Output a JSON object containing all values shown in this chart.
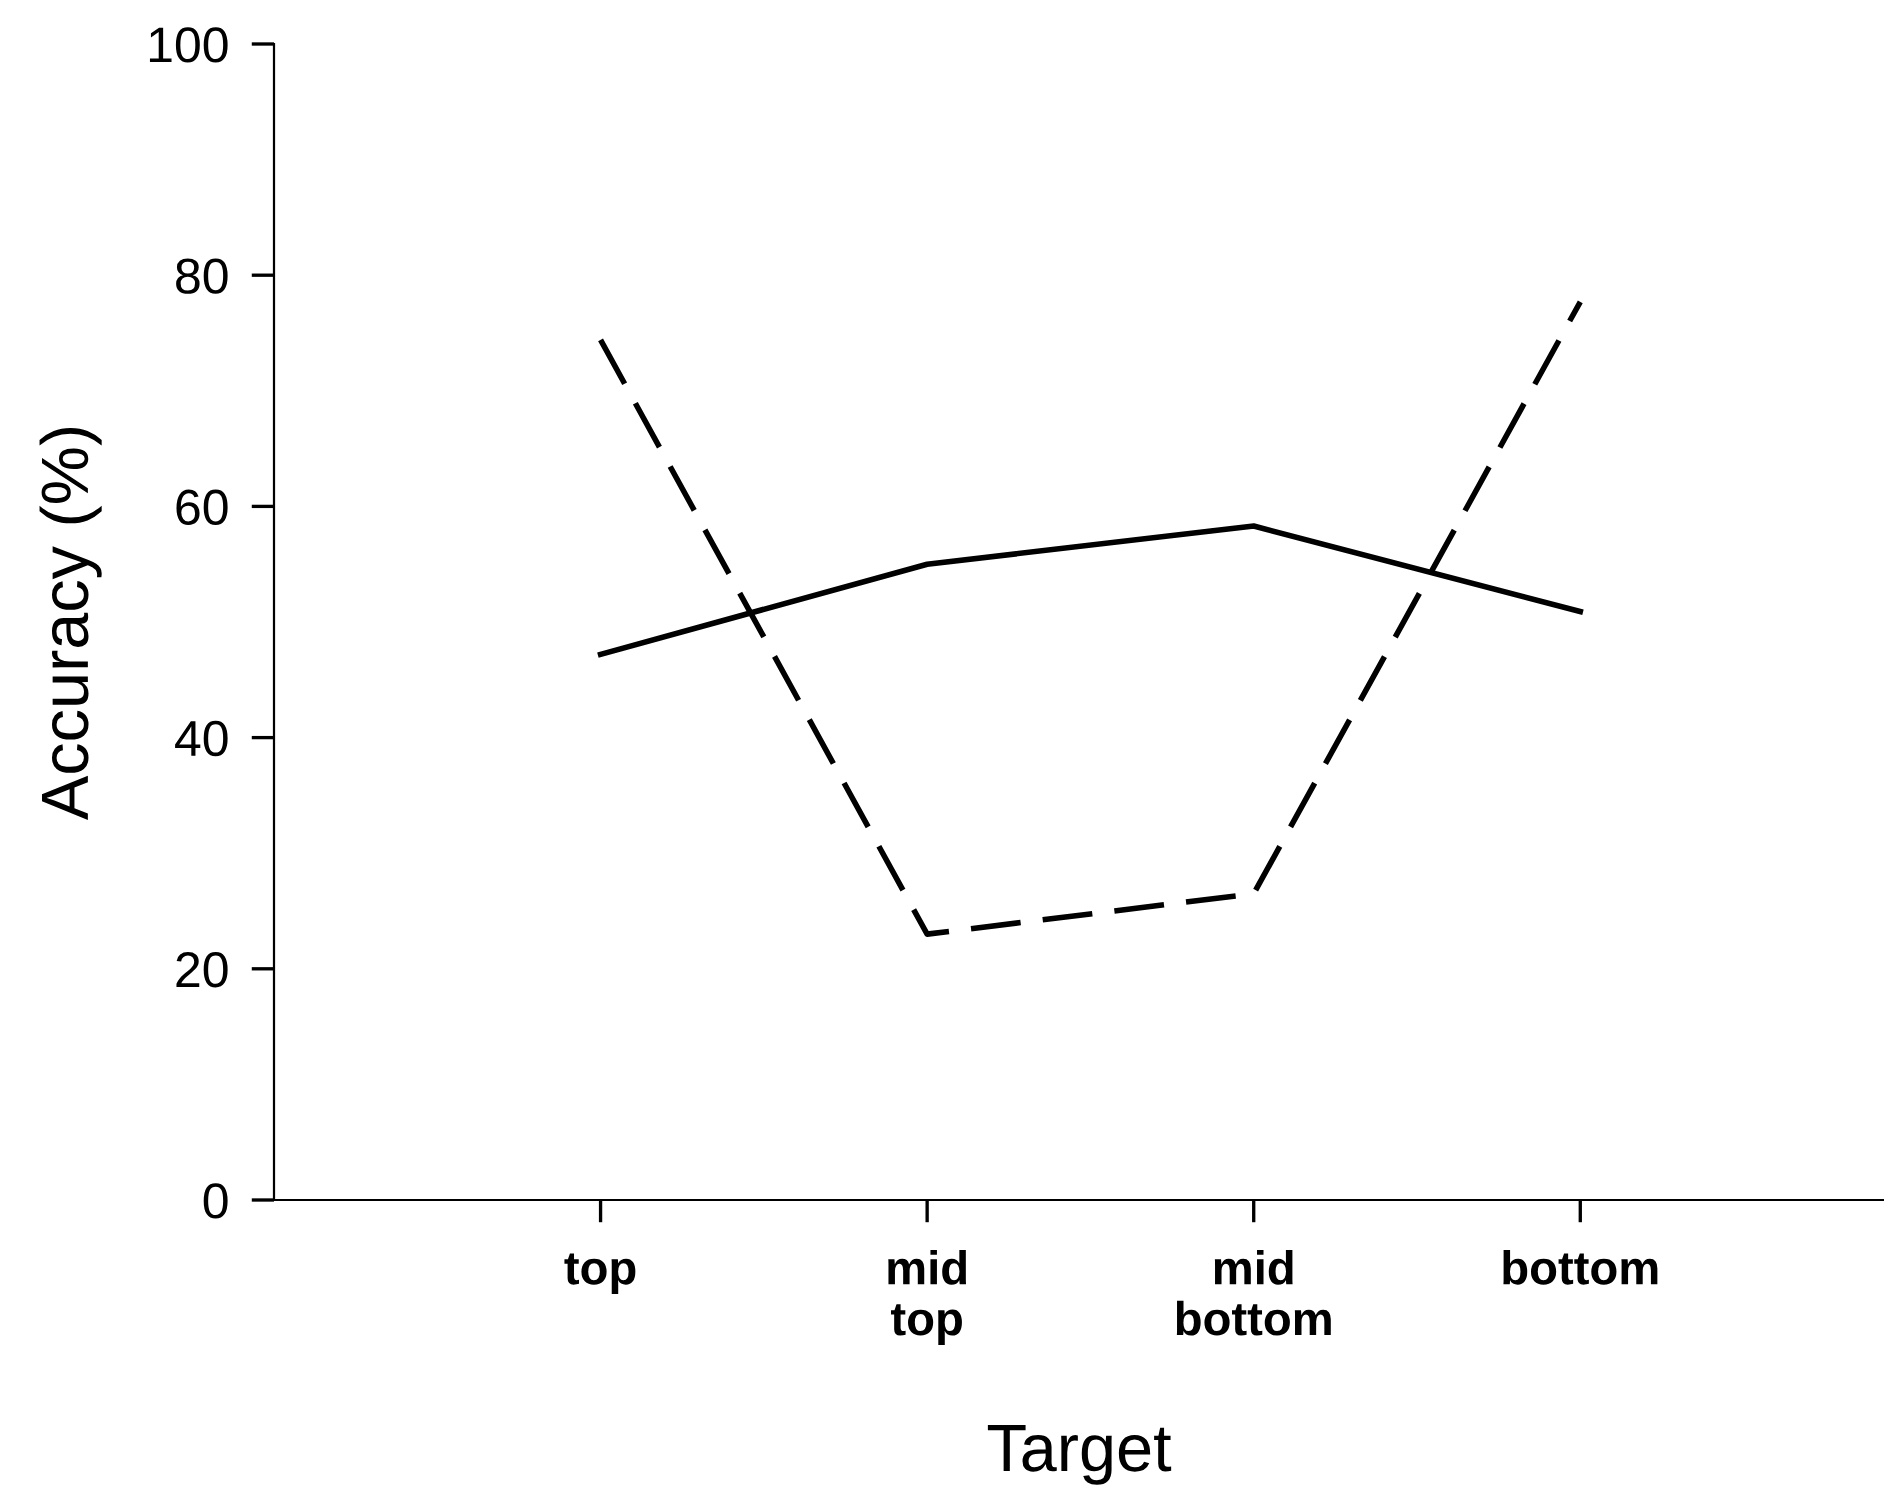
{
  "chart_data": {
    "type": "line",
    "xlabel": "Target",
    "ylabel": "Accuracy (%)",
    "categories": [
      "top",
      "mid\ntop",
      "mid\nbottom",
      "bottom"
    ],
    "series": [
      {
        "color": "#000000",
        "line_style": "solid",
        "values": [
          47.2,
          55.0,
          58.3,
          50.9
        ]
      },
      {
        "color": "#000000",
        "line_style": "dashed",
        "values": [
          74.4,
          23.0,
          26.5,
          77.7
        ]
      }
    ],
    "ylim": [
      0,
      100
    ],
    "yticks": [
      0,
      20,
      40,
      60,
      80,
      100
    ],
    "grid": false,
    "legend": false,
    "marker": "none"
  }
}
